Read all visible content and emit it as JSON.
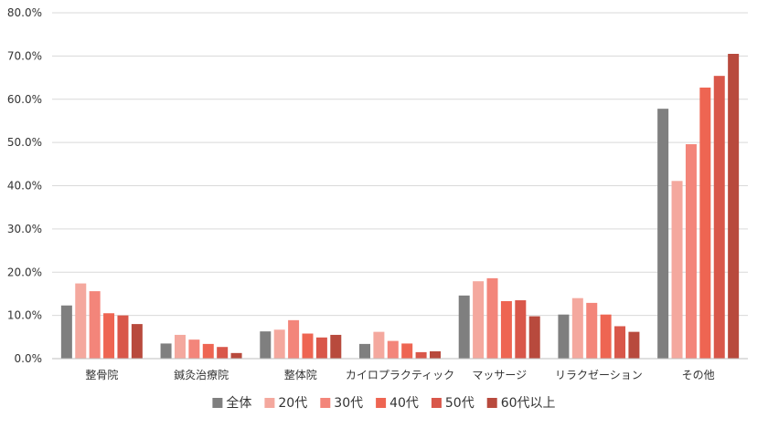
{
  "chart_data": {
    "type": "bar",
    "title": "",
    "xlabel": "",
    "ylabel": "",
    "ylim": [
      0,
      80
    ],
    "y_ticks": [
      "0.0%",
      "10.0%",
      "20.0%",
      "30.0%",
      "40.0%",
      "50.0%",
      "60.0%",
      "70.0%",
      "80.0%"
    ],
    "y_tick_values": [
      0,
      10,
      20,
      30,
      40,
      50,
      60,
      70,
      80
    ],
    "grid": true,
    "legend_position": "bottom",
    "categories": [
      "整骨院",
      "鍼灸治療院",
      "整体院",
      "カイロプラクティック",
      "マッサージ",
      "リラクゼーション",
      "その他"
    ],
    "series": [
      {
        "name": "全体",
        "color": "#7f7f7f",
        "values": [
          12.3,
          3.5,
          6.3,
          3.4,
          14.6,
          10.2,
          57.8
        ]
      },
      {
        "name": "20代",
        "color": "#f4a89e",
        "values": [
          17.4,
          5.5,
          6.7,
          6.2,
          17.9,
          14.0,
          41.1
        ]
      },
      {
        "name": "30代",
        "color": "#f3857a",
        "values": [
          15.6,
          4.4,
          8.9,
          4.1,
          18.6,
          12.9,
          49.6
        ]
      },
      {
        "name": "40代",
        "color": "#ee6552",
        "values": [
          10.5,
          3.4,
          5.8,
          3.5,
          13.3,
          10.2,
          62.7
        ]
      },
      {
        "name": "50代",
        "color": "#d9574a",
        "values": [
          10.0,
          2.7,
          4.9,
          1.5,
          13.5,
          7.5,
          65.4
        ]
      },
      {
        "name": "60代以上",
        "color": "#b84a3d",
        "values": [
          8.0,
          1.3,
          5.5,
          1.7,
          9.8,
          6.2,
          70.5
        ]
      }
    ]
  }
}
